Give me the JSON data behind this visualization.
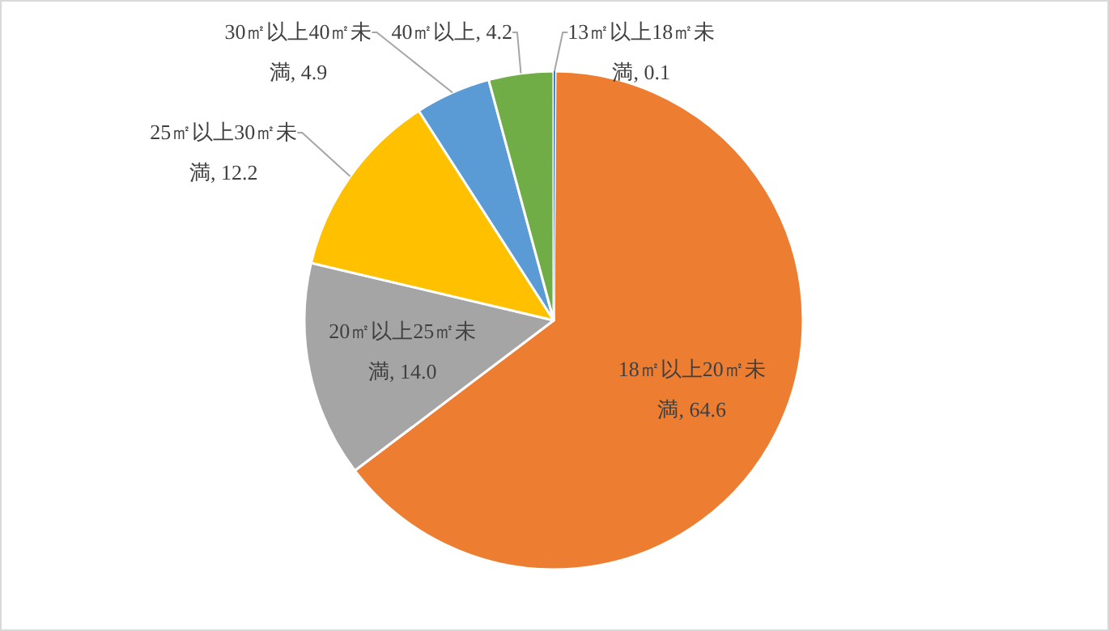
{
  "chart_data": {
    "type": "pie",
    "categories": [
      "13㎡以上18㎡未満",
      "18㎡以上20㎡未満",
      "20㎡以上25㎡未満",
      "25㎡以上30㎡未満",
      "30㎡以上40㎡未満",
      "40㎡以上"
    ],
    "values": [
      0.1,
      64.6,
      14.0,
      12.2,
      4.9,
      4.2
    ],
    "value_labels": [
      "0.1",
      "64.6",
      "14.0",
      "12.2",
      "4.9",
      "4.2"
    ],
    "colors": [
      "#4472c4",
      "#ed7d31",
      "#a5a5a5",
      "#ffc000",
      "#5b9bd5",
      "#70ad47"
    ]
  }
}
